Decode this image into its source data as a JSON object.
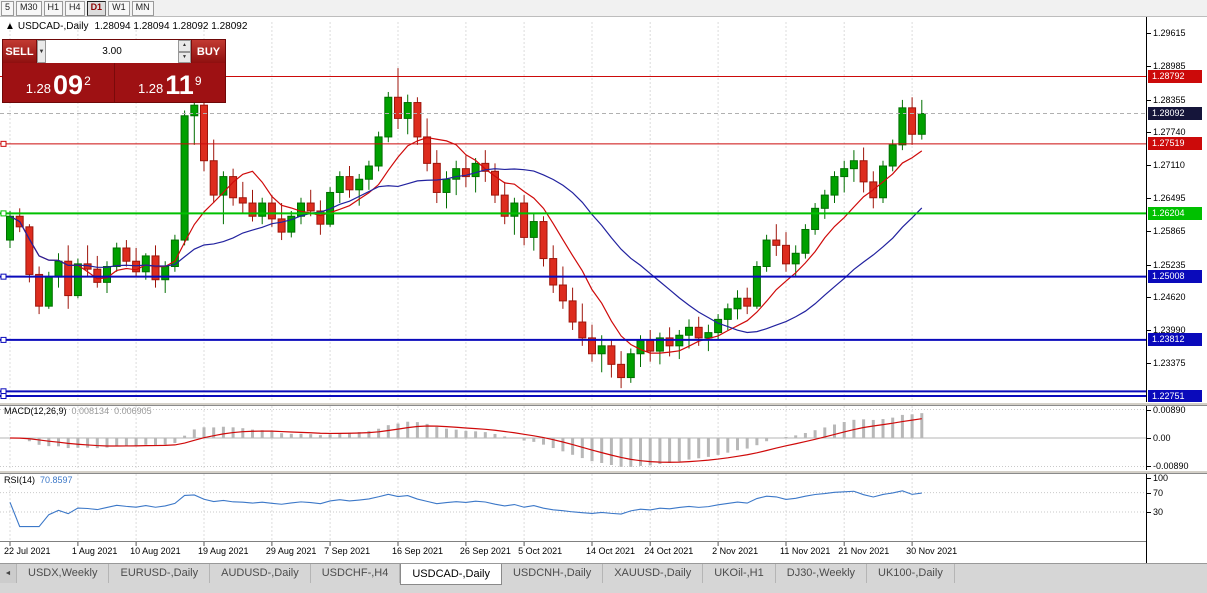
{
  "toolbar": {
    "timeframes": [
      {
        "label": "5",
        "active": false
      },
      {
        "label": "M30",
        "active": false
      },
      {
        "label": "H1",
        "active": false
      },
      {
        "label": "H4",
        "active": false
      },
      {
        "label": "D1",
        "active": true
      },
      {
        "label": "W1",
        "active": false
      },
      {
        "label": "MN",
        "active": false
      }
    ]
  },
  "chart_header": {
    "collapse_icon": "▲",
    "symbol": "USDCAD-,Daily",
    "quotes": "1.28094 1.28094 1.28092 1.28092"
  },
  "trade_panel": {
    "sell_label": "SELL",
    "buy_label": "BUY",
    "volume": "3.00",
    "dropdown_icon": "▼",
    "spin_up_icon": "▲",
    "spin_down_icon": "▼",
    "sell_price": {
      "prefix": "1.28",
      "big": "09",
      "sup": "2"
    },
    "buy_price": {
      "prefix": "1.28",
      "big": "11",
      "sup": "9"
    }
  },
  "chart_data": {
    "type": "candlestick",
    "title": "USDCAD-,Daily",
    "x_labels": [
      "22 Jul 2021",
      "1 Aug 2021",
      "10 Aug 2021",
      "19 Aug 2021",
      "29 Aug 2021",
      "7 Sep 2021",
      "16 Sep 2021",
      "26 Sep 2021",
      "5 Oct 2021",
      "14 Oct 2021",
      "24 Oct 2021",
      "2 Nov 2021",
      "11 Nov 2021",
      "21 Nov 2021",
      "30 Nov 2021"
    ],
    "x_label_indices": [
      0,
      7,
      13,
      20,
      27,
      33,
      40,
      47,
      53,
      60,
      66,
      73,
      80,
      86,
      93
    ],
    "price_axis_ticks": [
      "1.29615",
      "1.28985",
      "1.28355",
      "1.27740",
      "1.27110",
      "1.26495",
      "1.25865",
      "1.25235",
      "1.24620",
      "1.23990",
      "1.23375"
    ],
    "price_range": {
      "top": 1.29823,
      "bottom": 1.22638
    },
    "candles": [
      [
        1.257,
        1.2625,
        1.2555,
        1.2615
      ],
      [
        1.2615,
        1.263,
        1.2585,
        1.2595
      ],
      [
        1.2595,
        1.26,
        1.249,
        1.2505
      ],
      [
        1.2505,
        1.252,
        1.243,
        1.2445
      ],
      [
        1.2445,
        1.251,
        1.244,
        1.25
      ],
      [
        1.25,
        1.2545,
        1.248,
        1.253
      ],
      [
        1.253,
        1.256,
        1.244,
        1.2465
      ],
      [
        1.2465,
        1.2535,
        1.246,
        1.2525
      ],
      [
        1.2525,
        1.256,
        1.25,
        1.2515
      ],
      [
        1.2515,
        1.254,
        1.248,
        1.249
      ],
      [
        1.249,
        1.253,
        1.247,
        1.252
      ],
      [
        1.252,
        1.2565,
        1.251,
        1.2555
      ],
      [
        1.2555,
        1.257,
        1.252,
        1.253
      ],
      [
        1.253,
        1.2555,
        1.25,
        1.251
      ],
      [
        1.251,
        1.2545,
        1.2495,
        1.254
      ],
      [
        1.254,
        1.256,
        1.248,
        1.2495
      ],
      [
        1.2495,
        1.253,
        1.247,
        1.252
      ],
      [
        1.252,
        1.258,
        1.251,
        1.257
      ],
      [
        1.257,
        1.2815,
        1.256,
        1.2805
      ],
      [
        1.2805,
        1.284,
        1.275,
        1.2825
      ],
      [
        1.2825,
        1.2835,
        1.27,
        1.272
      ],
      [
        1.272,
        1.276,
        1.264,
        1.2655
      ],
      [
        1.2655,
        1.27,
        1.26,
        1.269
      ],
      [
        1.269,
        1.2705,
        1.2635,
        1.265
      ],
      [
        1.265,
        1.268,
        1.262,
        1.264
      ],
      [
        1.264,
        1.2665,
        1.2605,
        1.2615
      ],
      [
        1.2615,
        1.265,
        1.26,
        1.264
      ],
      [
        1.264,
        1.2655,
        1.2595,
        1.261
      ],
      [
        1.261,
        1.264,
        1.257,
        1.2585
      ],
      [
        1.2585,
        1.2625,
        1.2575,
        1.2615
      ],
      [
        1.2615,
        1.265,
        1.26,
        1.264
      ],
      [
        1.264,
        1.2665,
        1.2615,
        1.2625
      ],
      [
        1.2625,
        1.2645,
        1.258,
        1.26
      ],
      [
        1.26,
        1.267,
        1.2595,
        1.266
      ],
      [
        1.266,
        1.27,
        1.264,
        1.269
      ],
      [
        1.269,
        1.271,
        1.265,
        1.2665
      ],
      [
        1.2665,
        1.2695,
        1.2635,
        1.2685
      ],
      [
        1.2685,
        1.272,
        1.2665,
        1.271
      ],
      [
        1.271,
        1.2775,
        1.27,
        1.2765
      ],
      [
        1.2765,
        1.285,
        1.2755,
        1.284
      ],
      [
        1.284,
        1.2895,
        1.278,
        1.28
      ],
      [
        1.28,
        1.2845,
        1.277,
        1.283
      ],
      [
        1.283,
        1.284,
        1.275,
        1.2765
      ],
      [
        1.2765,
        1.28,
        1.27,
        1.2715
      ],
      [
        1.2715,
        1.274,
        1.264,
        1.266
      ],
      [
        1.266,
        1.27,
        1.263,
        1.2685
      ],
      [
        1.2685,
        1.272,
        1.2655,
        1.2705
      ],
      [
        1.2705,
        1.273,
        1.267,
        1.269
      ],
      [
        1.269,
        1.2725,
        1.266,
        1.2715
      ],
      [
        1.2715,
        1.274,
        1.268,
        1.27
      ],
      [
        1.27,
        1.2715,
        1.264,
        1.2655
      ],
      [
        1.2655,
        1.268,
        1.26,
        1.2615
      ],
      [
        1.2615,
        1.265,
        1.258,
        1.264
      ],
      [
        1.264,
        1.2655,
        1.256,
        1.2575
      ],
      [
        1.2575,
        1.262,
        1.255,
        1.2605
      ],
      [
        1.2605,
        1.2615,
        1.252,
        1.2535
      ],
      [
        1.2535,
        1.256,
        1.247,
        1.2485
      ],
      [
        1.2485,
        1.252,
        1.244,
        1.2455
      ],
      [
        1.2455,
        1.248,
        1.24,
        1.2415
      ],
      [
        1.2415,
        1.245,
        1.237,
        1.2385
      ],
      [
        1.2385,
        1.241,
        1.234,
        1.2355
      ],
      [
        1.2355,
        1.239,
        1.232,
        1.237
      ],
      [
        1.237,
        1.238,
        1.231,
        1.2335
      ],
      [
        1.2335,
        1.236,
        1.229,
        1.231
      ],
      [
        1.231,
        1.2365,
        1.23,
        1.2355
      ],
      [
        1.2355,
        1.239,
        1.233,
        1.238
      ],
      [
        1.238,
        1.24,
        1.234,
        1.236
      ],
      [
        1.236,
        1.2395,
        1.2335,
        1.2385
      ],
      [
        1.2385,
        1.2405,
        1.235,
        1.237
      ],
      [
        1.237,
        1.24,
        1.2345,
        1.239
      ],
      [
        1.239,
        1.242,
        1.2365,
        1.2405
      ],
      [
        1.2405,
        1.2425,
        1.237,
        1.2385
      ],
      [
        1.2385,
        1.241,
        1.236,
        1.2395
      ],
      [
        1.2395,
        1.243,
        1.238,
        1.242
      ],
      [
        1.242,
        1.245,
        1.24,
        1.244
      ],
      [
        1.244,
        1.2475,
        1.242,
        1.246
      ],
      [
        1.246,
        1.248,
        1.243,
        1.2445
      ],
      [
        1.2445,
        1.253,
        1.244,
        1.252
      ],
      [
        1.252,
        1.258,
        1.251,
        1.257
      ],
      [
        1.257,
        1.26,
        1.254,
        1.256
      ],
      [
        1.256,
        1.2585,
        1.251,
        1.2525
      ],
      [
        1.2525,
        1.256,
        1.25,
        1.2545
      ],
      [
        1.2545,
        1.26,
        1.2535,
        1.259
      ],
      [
        1.259,
        1.264,
        1.258,
        1.263
      ],
      [
        1.263,
        1.2665,
        1.261,
        1.2655
      ],
      [
        1.2655,
        1.27,
        1.264,
        1.269
      ],
      [
        1.269,
        1.272,
        1.266,
        1.2705
      ],
      [
        1.2705,
        1.274,
        1.268,
        1.272
      ],
      [
        1.272,
        1.2745,
        1.266,
        1.268
      ],
      [
        1.268,
        1.27,
        1.263,
        1.265
      ],
      [
        1.265,
        1.272,
        1.264,
        1.271
      ],
      [
        1.271,
        1.276,
        1.27,
        1.275
      ],
      [
        1.275,
        1.2835,
        1.274,
        1.282
      ],
      [
        1.282,
        1.284,
        1.275,
        1.277
      ],
      [
        1.277,
        1.2835,
        1.276,
        1.28092
      ]
    ],
    "up_color": "#00a000",
    "down_color": "#dd2c1e",
    "horizontal_lines": [
      {
        "price": 1.28792,
        "label": "1.28792",
        "color": "#cc0a0a",
        "width": 1,
        "anchor": false
      },
      {
        "price": 1.27519,
        "label": "1.27519",
        "color": "#cc0a0a",
        "width": 1,
        "anchor": true
      },
      {
        "price": 1.26204,
        "label": "1.26204",
        "color": "#00c000",
        "width": 2,
        "anchor": true
      },
      {
        "price": 1.25008,
        "label": "1.25008",
        "color": "#0a0abb",
        "width": 2,
        "anchor": true
      },
      {
        "price": 1.23812,
        "label": "1.23812",
        "color": "#0a0abb",
        "width": 2,
        "anchor": true
      },
      {
        "price": 1.2284,
        "label": "",
        "color": "#0a0abb",
        "width": 2,
        "anchor": true
      },
      {
        "price": 1.22751,
        "label": "1.22751",
        "color": "#0a0abb",
        "width": 2,
        "anchor": true
      }
    ],
    "current_price": {
      "value": 1.28092,
      "label": "1.28092",
      "badge_color": "#15153a"
    },
    "indicators": {
      "ma_fast": {
        "period": 8,
        "color": "#cf0a0a"
      },
      "ma_slow": {
        "period": 21,
        "color": "#22229f"
      },
      "macd": {
        "name": "MACD(12,26,9)",
        "value_main": "0.008134",
        "value_signal": "0.006905",
        "axis_ticks": [
          "0.00890",
          "0.00",
          "-0.00890"
        ],
        "axis_tick_values": [
          0.0089,
          0,
          -0.0089
        ],
        "scale_max": 0.01,
        "histogram_color": "#b8b8b8",
        "signal_color": "#cf0a0a"
      },
      "rsi": {
        "name": "RSI(14)",
        "value": "70.8597",
        "axis_ticks": [
          "100",
          "70",
          "30"
        ],
        "axis_tick_values": [
          100,
          70,
          30
        ],
        "levels": [
          70,
          30
        ],
        "color": "#3c78c8"
      }
    }
  },
  "bottom_tabs": {
    "scroll_left_icon": "◄",
    "tabs": [
      {
        "label": "USDX,Weekly",
        "active": false
      },
      {
        "label": "EURUSD-,Daily",
        "active": false
      },
      {
        "label": "AUDUSD-,Daily",
        "active": false
      },
      {
        "label": "USDCHF-,H4",
        "active": false
      },
      {
        "label": "USDCAD-,Daily",
        "active": true
      },
      {
        "label": "USDCNH-,Daily",
        "active": false
      },
      {
        "label": "XAUUSD-,Daily",
        "active": false
      },
      {
        "label": "UKOil-,H1",
        "active": false
      },
      {
        "label": "DJ30-,Weekly",
        "active": false
      },
      {
        "label": "UK100-,Daily",
        "active": false
      }
    ]
  }
}
